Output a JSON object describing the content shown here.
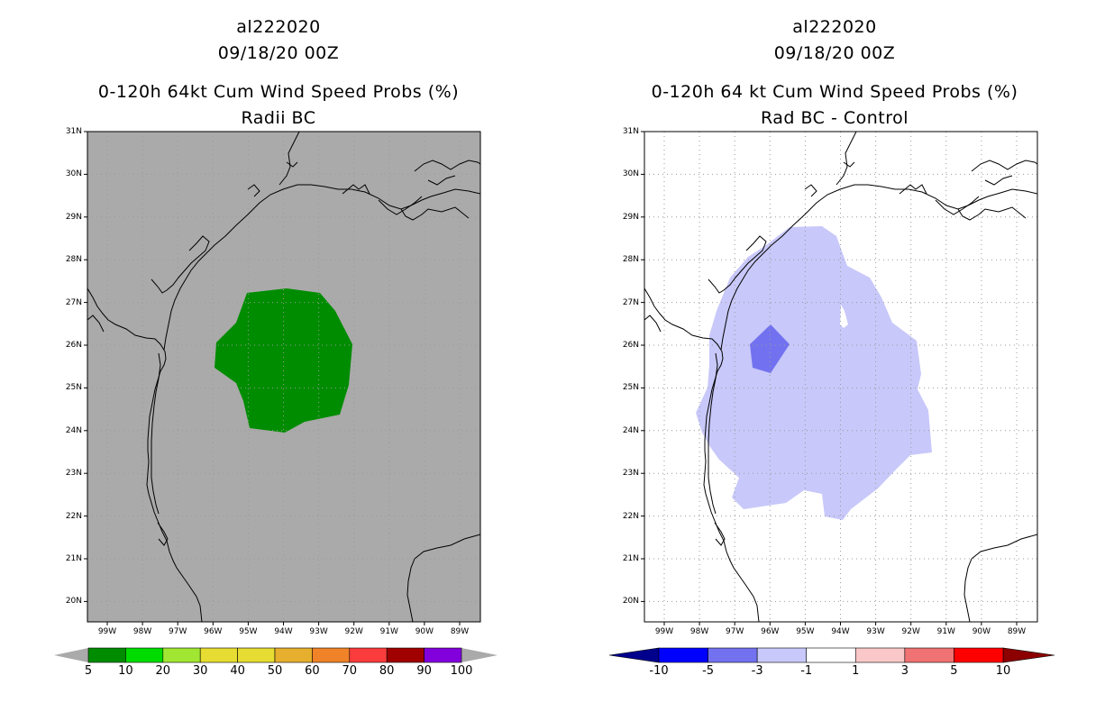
{
  "left": {
    "title_line1": "al222020",
    "title_line2": "09/18/20 00Z",
    "title_line3": "0-120h 64kt Cum Wind Speed Probs (%)",
    "title_line4": "Radii BC",
    "background_color": "#aaaaaa",
    "fill_color": "#008c00",
    "colorbar": {
      "labels": [
        "5",
        "10",
        "20",
        "30",
        "40",
        "50",
        "60",
        "70",
        "80",
        "90",
        "100"
      ],
      "colors": [
        "#008c00",
        "#00dc00",
        "#a0e632",
        "#e6dc32",
        "#e6dc32",
        "#e6af2d",
        "#f08228",
        "#fa3c3c",
        "#a00000",
        "#8200dc"
      ]
    }
  },
  "right": {
    "title_line1": "al222020",
    "title_line2": "09/18/20 00Z",
    "title_line3": "0-120h 64 kt Cum Wind Speed Probs (%)",
    "title_line4": "Rad BC - Control",
    "background_color": "#ffffff",
    "fill_light": "#c8c8fa",
    "fill_mid": "#7272f0",
    "colorbar": {
      "labels": [
        "-10",
        "-5",
        "-3",
        "-1",
        "1",
        "3",
        "5",
        "10"
      ],
      "colors": [
        "#0000ff",
        "#7272f0",
        "#c8c8fa",
        "#ffffff",
        "#fac8c8",
        "#f07272",
        "#ff0000"
      ],
      "left_arrow_color": "#00008c",
      "right_arrow_color": "#8c0000"
    }
  },
  "axes": {
    "lat_labels": [
      "31N",
      "30N",
      "29N",
      "28N",
      "27N",
      "26N",
      "25N",
      "24N",
      "23N",
      "22N",
      "21N",
      "20N"
    ],
    "lon_labels": [
      "99W",
      "98W",
      "97W",
      "96W",
      "95W",
      "94W",
      "93W",
      "92W",
      "91W",
      "90W",
      "89W"
    ]
  }
}
